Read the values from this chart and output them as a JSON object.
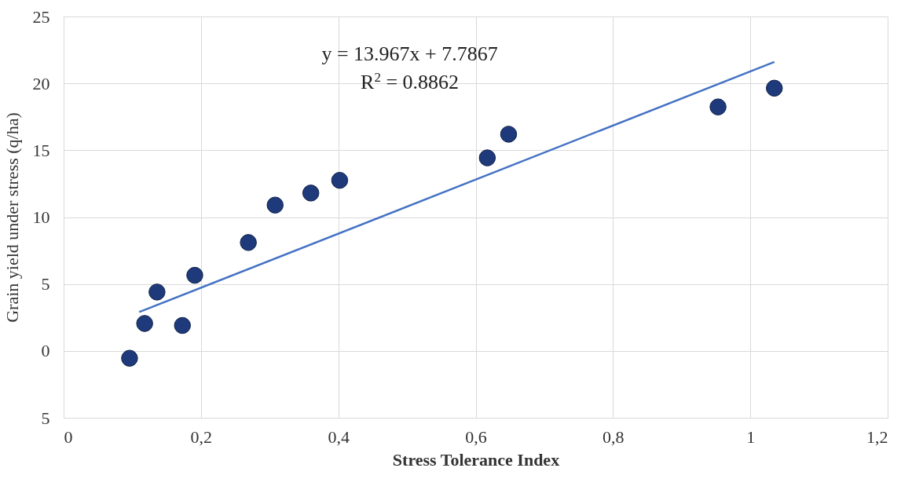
{
  "chart_data": {
    "type": "scatter",
    "xlabel": "Stress Tolerance Index",
    "ylabel": "Grain yield under stress (q/ha)",
    "xlim": [
      0,
      1.2
    ],
    "xticks": [
      0,
      {
        "value": 0.2,
        "label": "0,2"
      },
      {
        "value": 0.4,
        "label": "0,4"
      },
      {
        "value": 0.6,
        "label": "0,6"
      },
      {
        "value": 0.8,
        "label": "0,8"
      },
      1,
      {
        "value": 1.2,
        "label": "1,2"
      }
    ],
    "ylim": [
      -5,
      25
    ],
    "yticks": [
      {
        "value": -5,
        "label": "5"
      },
      0,
      5,
      10,
      15,
      20,
      25
    ],
    "grid": true,
    "series": [
      {
        "marker": "circle",
        "color": "#1f3a7a",
        "x": [
          0.096,
          0.118,
          0.136,
          0.173,
          0.191,
          0.269,
          0.308,
          0.36,
          0.402,
          0.617,
          0.648,
          0.953,
          1.035
        ],
        "values": [
          -0.55,
          2.05,
          4.4,
          1.9,
          5.65,
          8.1,
          10.9,
          11.8,
          12.75,
          14.43,
          16.2,
          18.24,
          19.64
        ]
      },
      {
        "type": "line",
        "color": "#4472c4",
        "x": [
          0.11,
          1.035
        ],
        "values": [
          2.9,
          21.6
        ]
      }
    ],
    "annotations": [
      "y = 13.967x + 7.7867",
      "R$^{2}$ = 0.8862"
    ]
  }
}
